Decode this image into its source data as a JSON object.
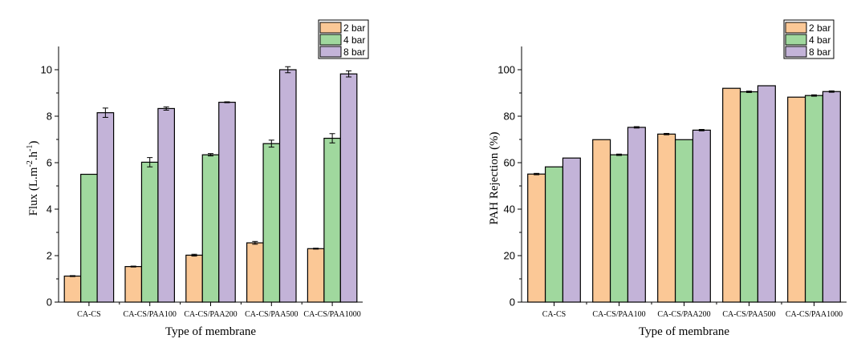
{
  "chart_data": [
    {
      "type": "bar",
      "title": "",
      "xlabel": "Type of membrane",
      "ylabel": "Flux (L.m-2.h-1)",
      "ylabel_parts": {
        "base": "Flux (L.m",
        "sup1": "-2",
        "mid": ".h",
        "sup2": "-1",
        "end": ")"
      },
      "ylim": [
        0,
        11
      ],
      "yticks": [
        0,
        2,
        4,
        6,
        8,
        10
      ],
      "grid": false,
      "legend_position": "top-right",
      "categories": [
        "CA-CS",
        "CA-CS/PAA100",
        "CA-CS/PAA200",
        "CA-CS/PAA500",
        "CA-CS/PAA1000"
      ],
      "series": [
        {
          "name": "2 bar",
          "color": "#FBC896",
          "values": [
            1.12,
            1.53,
            2.02,
            2.55,
            2.3
          ],
          "errors": [
            0.02,
            0.02,
            0.04,
            0.06,
            0.02
          ]
        },
        {
          "name": "4 bar",
          "color": "#A0D89E",
          "values": [
            5.5,
            6.02,
            6.34,
            6.82,
            7.05
          ],
          "errors": [
            0.0,
            0.2,
            0.05,
            0.15,
            0.2
          ]
        },
        {
          "name": "8 bar",
          "color": "#C3B3D8",
          "values": [
            8.15,
            8.33,
            8.6,
            10.0,
            9.82
          ],
          "errors": [
            0.2,
            0.07,
            0.02,
            0.13,
            0.13
          ]
        }
      ]
    },
    {
      "type": "bar",
      "title": "",
      "xlabel": "Type of membrane",
      "ylabel": "PAH Rejection (%)",
      "ylim": [
        0,
        110
      ],
      "yticks": [
        0,
        20,
        40,
        60,
        80,
        100
      ],
      "grid": false,
      "legend_position": "top-right",
      "categories": [
        "CA-CS",
        "CA-CS/PAA100",
        "CA-CS/PAA200",
        "CA-CS/PAA500",
        "CA-CS/PAA1000"
      ],
      "series": [
        {
          "name": "2 bar",
          "color": "#FBC896",
          "values": [
            55.1,
            69.9,
            72.3,
            92.0,
            88.2
          ],
          "errors": [
            0.3,
            0.0,
            0.3,
            0.0,
            0.0
          ]
        },
        {
          "name": "4 bar",
          "color": "#A0D89E",
          "values": [
            58.2,
            63.4,
            69.9,
            90.5,
            88.9
          ],
          "errors": [
            0.0,
            0.3,
            0.0,
            0.3,
            0.3
          ]
        },
        {
          "name": "8 bar",
          "color": "#C3B3D8",
          "values": [
            62.0,
            75.2,
            74.0,
            93.1,
            90.6
          ],
          "errors": [
            0.0,
            0.3,
            0.3,
            0.0,
            0.3
          ]
        }
      ]
    }
  ]
}
